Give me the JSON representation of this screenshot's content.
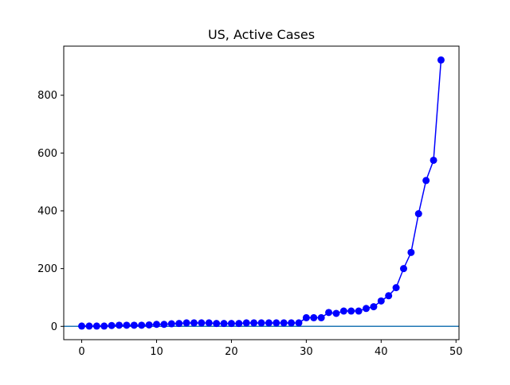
{
  "chart_data": {
    "type": "line",
    "title": "US, Active Cases",
    "xlabel": "",
    "ylabel": "",
    "xlim": [
      -2.4,
      50.4
    ],
    "ylim": [
      -46,
      970
    ],
    "xticks": [
      0,
      10,
      20,
      30,
      40,
      50
    ],
    "yticks": [
      0,
      200,
      400,
      600,
      800
    ],
    "grid": false,
    "legend": "none",
    "series": [
      {
        "color": "#0000ff",
        "marker": "circle",
        "x": [
          0,
          1,
          2,
          3,
          4,
          5,
          6,
          7,
          8,
          9,
          10,
          11,
          12,
          13,
          14,
          15,
          16,
          17,
          18,
          19,
          20,
          21,
          22,
          23,
          24,
          25,
          26,
          27,
          28,
          29,
          30,
          31,
          32,
          33,
          34,
          35,
          36,
          37,
          38,
          39,
          40,
          41,
          42,
          43,
          44,
          45,
          46,
          47,
          48
        ],
        "y": [
          1,
          1,
          1,
          1,
          3,
          4,
          4,
          4,
          4,
          5,
          7,
          7,
          9,
          10,
          12,
          12,
          12,
          12,
          10,
          10,
          10,
          10,
          12,
          12,
          12,
          12,
          12,
          12,
          12,
          12,
          30,
          30,
          30,
          48,
          45,
          53,
          53,
          53,
          62,
          68,
          88,
          106,
          134,
          200,
          256,
          390,
          505,
          575,
          922
        ]
      }
    ],
    "reference_lines": [
      {
        "orientation": "horizontal",
        "y": 0,
        "color": "#1f77b4"
      }
    ]
  }
}
